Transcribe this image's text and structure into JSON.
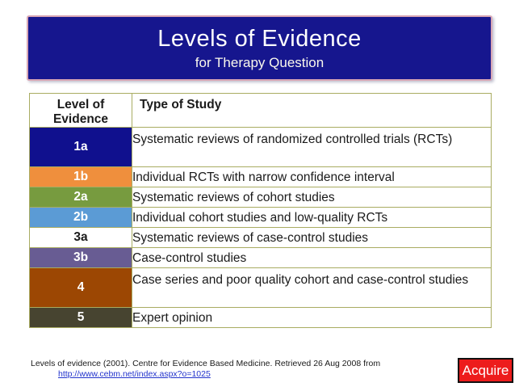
{
  "header": {
    "title": "Levels of Evidence",
    "subtitle": "for Therapy Question"
  },
  "table": {
    "columns": [
      "Level of Evidence",
      "Type of Study"
    ],
    "rows": [
      {
        "level": "1a",
        "study": "Systematic reviews of randomized controlled trials (RCTs)",
        "bg": "#10108E",
        "fg": "#ffffff"
      },
      {
        "level": "1b",
        "study": "Individual RCTs with narrow confidence interval",
        "bg": "#EF8F3D",
        "fg": "#ffffff"
      },
      {
        "level": "2a",
        "study": "Systematic reviews of cohort studies",
        "bg": "#779B3F",
        "fg": "#ffffff"
      },
      {
        "level": "2b",
        "study": "Individual cohort studies and low-quality RCTs",
        "bg": "#5B9BD5",
        "fg": "#ffffff"
      },
      {
        "level": "3a",
        "study": "Systematic reviews of case-control studies",
        "bg": "#FFFFFF",
        "fg": "#1a1a1a"
      },
      {
        "level": "3b",
        "study": "Case-control studies",
        "bg": "#685C93",
        "fg": "#ffffff"
      },
      {
        "level": "4",
        "study": "Case series and poor quality cohort and case-control studies",
        "bg": "#9C4703",
        "fg": "#ffffff"
      },
      {
        "level": "5",
        "study": "Expert opinion",
        "bg": "#474430",
        "fg": "#ffffff"
      }
    ]
  },
  "footer": {
    "citation": "Levels of evidence (2001). Centre for Evidence Based Medicine. Retrieved 26 Aug 2008 from",
    "link": "http://www.cebm.net/index.aspx?o=1025",
    "acquire_label": "Acquire"
  },
  "colors": {
    "banner_bg": "#16168E",
    "banner_border": "#D9A7B5",
    "table_border": "#A9AC62",
    "link": "#2233CC",
    "acquire_bg": "#ED1C1C",
    "acquire_border": "#111111"
  }
}
